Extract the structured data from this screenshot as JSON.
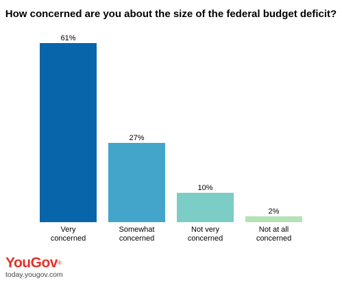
{
  "chart_data": {
    "type": "bar",
    "title": "How concerned are you about the size of the federal budget deficit?",
    "categories": [
      [
        "Very",
        "concerned"
      ],
      [
        "Somewhat",
        "concerned"
      ],
      [
        "Not very",
        "concerned"
      ],
      [
        "Not at all",
        "concerned"
      ]
    ],
    "values": [
      61,
      27,
      10,
      2
    ],
    "value_labels": [
      "61%",
      "27%",
      "10%",
      "2%"
    ],
    "colors": [
      "#0865aa",
      "#43a5ca",
      "#7ccdc6",
      "#b5e2b6"
    ],
    "xlabel": "",
    "ylabel": "",
    "ylim": [
      0,
      61
    ],
    "grid": false
  },
  "brand": {
    "you": "You",
    "gov": "Gov",
    "reg": "®",
    "url": "today.yougov.com"
  }
}
